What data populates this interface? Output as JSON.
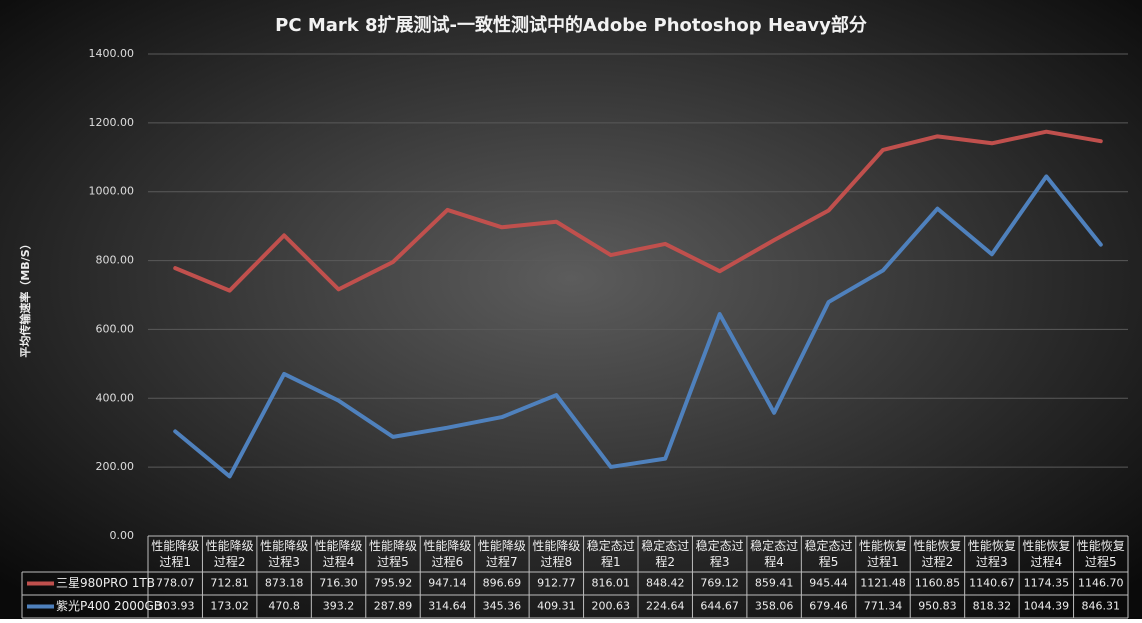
{
  "chart_data": {
    "type": "line",
    "title": "PC Mark 8扩展测试-一致性测试中的Adobe Photoshop Heavy部分",
    "y_label": "平均传输速率（MB/S）",
    "categories": [
      "性能降级过程1",
      "性能降级过程2",
      "性能降级过程3",
      "性能降级过程4",
      "性能降级过程5",
      "性能降级过程6",
      "性能降级过程7",
      "性能降级过程8",
      "稳定态过程1",
      "稳定态过程2",
      "稳定态过程3",
      "稳定态过程4",
      "稳定态过程5",
      "性能恢复过程1",
      "性能恢复过程2",
      "性能恢复过程3",
      "性能恢复过程4",
      "性能恢复过程5"
    ],
    "series": [
      {
        "name": "三星980PRO 1TB",
        "color": "#c0504d",
        "values": [
          778.07,
          712.81,
          873.18,
          716.3,
          795.92,
          947.14,
          896.69,
          912.77,
          816.01,
          848.42,
          769.12,
          859.41,
          945.44,
          1121.48,
          1160.85,
          1140.67,
          1174.35,
          1146.7
        ],
        "value_labels": [
          "778.07",
          "712.81",
          "873.18",
          "716.30",
          "795.92",
          "947.14",
          "896.69",
          "912.77",
          "816.01",
          "848.42",
          "769.12",
          "859.41",
          "945.44",
          "1121.48",
          "1160.85",
          "1140.67",
          "1174.35",
          "1146.70"
        ]
      },
      {
        "name": "紫光P400 2000GB",
        "color": "#4f81bd",
        "values": [
          303.93,
          173.02,
          470.8,
          393.2,
          287.89,
          314.64,
          345.36,
          409.31,
          200.63,
          224.64,
          644.67,
          358.06,
          679.46,
          771.34,
          950.83,
          818.32,
          1044.39,
          846.31
        ],
        "value_labels": [
          "303.93",
          "173.02",
          "470.8",
          "393.2",
          "287.89",
          "314.64",
          "345.36",
          "409.31",
          "200.63",
          "224.64",
          "644.67",
          "358.06",
          "679.46",
          "771.34",
          "950.83",
          "818.32",
          "1044.39",
          "846.31"
        ]
      }
    ],
    "ylim": [
      0,
      1400
    ],
    "yticks": [
      {
        "value": 0,
        "label": "0.00"
      },
      {
        "value": 200,
        "label": "200.00"
      },
      {
        "value": 400,
        "label": "400.00"
      },
      {
        "value": 600,
        "label": "600.00"
      },
      {
        "value": 800,
        "label": "800.00"
      },
      {
        "value": 1000,
        "label": "1000.00"
      },
      {
        "value": 1200,
        "label": "1200.00"
      },
      {
        "value": 1400,
        "label": "1400.00"
      }
    ],
    "grid": true
  }
}
